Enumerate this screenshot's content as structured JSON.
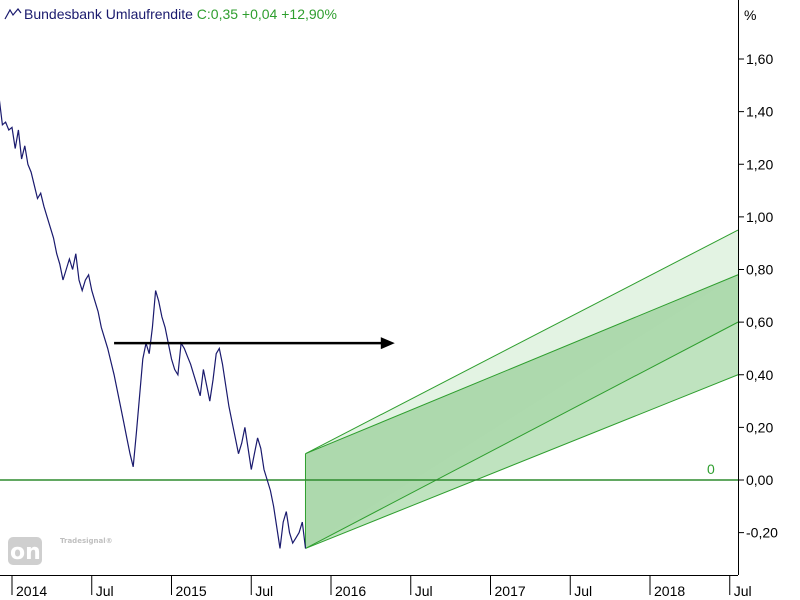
{
  "legend": {
    "name": "Bundesbank Umlaufrendite",
    "values": "C:0,35 +0,04 +12,90%"
  },
  "watermark": {
    "brand": "onLine",
    "sub": "Tradesignal®"
  },
  "chart_data": {
    "type": "line",
    "unit_label": "%",
    "ylim": [
      -0.3,
      1.75
    ],
    "y_ticks": [
      "1,60",
      "1,40",
      "1,20",
      "1,00",
      "0,80",
      "0,60",
      "0,40",
      "0,20",
      "0,00",
      "-0,20"
    ],
    "y_tick_values": [
      1.6,
      1.4,
      1.2,
      1.0,
      0.8,
      0.6,
      0.4,
      0.2,
      0.0,
      -0.2
    ],
    "x_ticks": [
      "2014",
      "Jul",
      "2015",
      "Jul",
      "2016",
      "Jul",
      "2017",
      "Jul",
      "2018",
      "Jul"
    ],
    "x_tick_values": [
      2014.0,
      2014.5,
      2015.0,
      2015.5,
      2016.0,
      2016.5,
      2017.0,
      2017.5,
      2018.0,
      2018.5
    ],
    "xlim": [
      2013.8,
      2018.85
    ],
    "zero_line": {
      "value": 0,
      "label": "0",
      "color": "#2e8b2e"
    },
    "series": [
      {
        "color": "#1a1a6e",
        "points": [
          [
            2013.8,
            1.38
          ],
          [
            2013.82,
            1.52
          ],
          [
            2013.84,
            1.56
          ],
          [
            2013.86,
            1.6
          ],
          [
            2013.88,
            1.65
          ],
          [
            2013.9,
            1.58
          ],
          [
            2013.92,
            1.45
          ],
          [
            2013.94,
            1.35
          ],
          [
            2013.96,
            1.36
          ],
          [
            2013.98,
            1.33
          ],
          [
            2014.0,
            1.34
          ],
          [
            2014.02,
            1.26
          ],
          [
            2014.04,
            1.33
          ],
          [
            2014.06,
            1.22
          ],
          [
            2014.08,
            1.27
          ],
          [
            2014.1,
            1.2
          ],
          [
            2014.12,
            1.17
          ],
          [
            2014.14,
            1.12
          ],
          [
            2014.16,
            1.07
          ],
          [
            2014.18,
            1.09
          ],
          [
            2014.2,
            1.04
          ],
          [
            2014.22,
            1.0
          ],
          [
            2014.24,
            0.96
          ],
          [
            2014.26,
            0.92
          ],
          [
            2014.28,
            0.86
          ],
          [
            2014.3,
            0.82
          ],
          [
            2014.32,
            0.76
          ],
          [
            2014.34,
            0.8
          ],
          [
            2014.36,
            0.84
          ],
          [
            2014.38,
            0.8
          ],
          [
            2014.4,
            0.86
          ],
          [
            2014.42,
            0.76
          ],
          [
            2014.44,
            0.72
          ],
          [
            2014.46,
            0.76
          ],
          [
            2014.48,
            0.78
          ],
          [
            2014.5,
            0.72
          ],
          [
            2014.52,
            0.68
          ],
          [
            2014.54,
            0.64
          ],
          [
            2014.56,
            0.58
          ],
          [
            2014.58,
            0.54
          ],
          [
            2014.6,
            0.5
          ],
          [
            2014.62,
            0.45
          ],
          [
            2014.64,
            0.4
          ],
          [
            2014.66,
            0.34
          ],
          [
            2014.68,
            0.28
          ],
          [
            2014.7,
            0.22
          ],
          [
            2014.72,
            0.16
          ],
          [
            2014.74,
            0.1
          ],
          [
            2014.76,
            0.05
          ],
          [
            2014.78,
            0.18
          ],
          [
            2014.8,
            0.32
          ],
          [
            2014.82,
            0.46
          ],
          [
            2014.84,
            0.52
          ],
          [
            2014.86,
            0.48
          ],
          [
            2014.88,
            0.58
          ],
          [
            2014.9,
            0.72
          ],
          [
            2014.92,
            0.68
          ],
          [
            2014.94,
            0.62
          ],
          [
            2014.96,
            0.58
          ],
          [
            2014.98,
            0.52
          ],
          [
            2015.0,
            0.46
          ],
          [
            2015.02,
            0.42
          ],
          [
            2015.04,
            0.4
          ],
          [
            2015.06,
            0.52
          ],
          [
            2015.08,
            0.5
          ],
          [
            2015.1,
            0.47
          ],
          [
            2015.12,
            0.44
          ],
          [
            2015.14,
            0.4
          ],
          [
            2015.16,
            0.36
          ],
          [
            2015.18,
            0.32
          ],
          [
            2015.2,
            0.42
          ],
          [
            2015.22,
            0.36
          ],
          [
            2015.24,
            0.3
          ],
          [
            2015.26,
            0.38
          ],
          [
            2015.28,
            0.48
          ],
          [
            2015.3,
            0.5
          ],
          [
            2015.32,
            0.44
          ],
          [
            2015.34,
            0.36
          ],
          [
            2015.36,
            0.28
          ],
          [
            2015.38,
            0.22
          ],
          [
            2015.4,
            0.16
          ],
          [
            2015.42,
            0.1
          ],
          [
            2015.44,
            0.14
          ],
          [
            2015.46,
            0.2
          ],
          [
            2015.48,
            0.12
          ],
          [
            2015.5,
            0.04
          ],
          [
            2015.52,
            0.1
          ],
          [
            2015.54,
            0.16
          ],
          [
            2015.56,
            0.12
          ],
          [
            2015.58,
            0.04
          ],
          [
            2015.6,
            0.0
          ],
          [
            2015.62,
            -0.04
          ],
          [
            2015.64,
            -0.1
          ],
          [
            2015.66,
            -0.18
          ],
          [
            2015.68,
            -0.26
          ],
          [
            2015.7,
            -0.16
          ],
          [
            2015.72,
            -0.12
          ],
          [
            2015.74,
            -0.2
          ],
          [
            2015.76,
            -0.24
          ],
          [
            2015.78,
            -0.22
          ],
          [
            2015.8,
            -0.2
          ],
          [
            2015.82,
            -0.16
          ],
          [
            2015.84,
            -0.26
          ]
        ]
      }
    ],
    "annotations": {
      "channel": {
        "start": [
          2015.84,
          -0.26
        ],
        "upper": [
          2016.54,
          0.2
        ]
      },
      "arrow": {
        "from": [
          2014.64,
          0.52
        ],
        "to": [
          2016.4,
          0.52
        ]
      }
    }
  }
}
